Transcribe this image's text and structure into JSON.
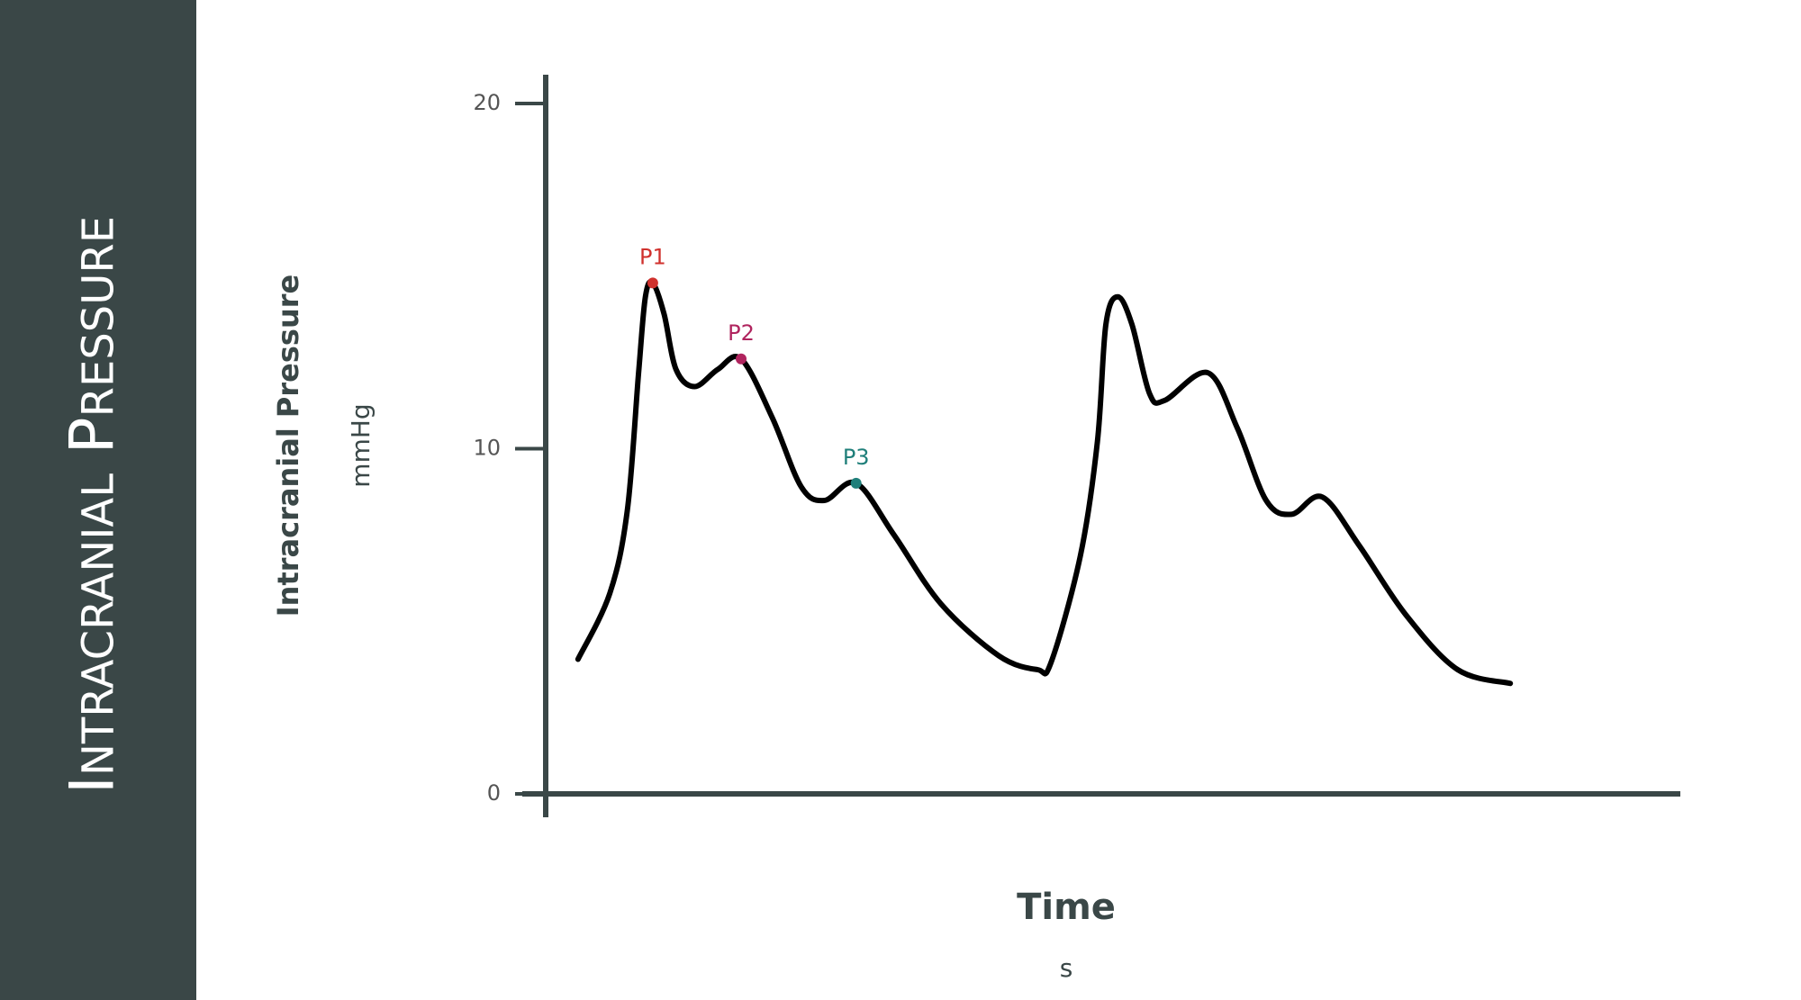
{
  "chart_data": {
    "type": "line",
    "title": "Intracranial Pressure",
    "y_label": "Intracranial Pressure",
    "y_unit": "mmHg",
    "x_label": "Time",
    "x_unit": "s",
    "x": [
      0.057,
      0.113,
      0.144,
      0.164,
      0.176,
      0.189,
      0.209,
      0.23,
      0.263,
      0.304,
      0.345,
      0.4,
      0.451,
      0.492,
      0.548,
      0.615,
      0.698,
      0.8,
      0.868,
      0.892,
      0.944,
      0.974,
      0.989,
      1.01,
      1.035,
      1.066,
      1.093,
      1.169,
      1.221,
      1.272,
      1.317,
      1.371,
      1.436,
      1.518,
      1.61,
      1.703
    ],
    "series": [
      {
        "name": "Intracranial Pressure",
        "color": "#000000",
        "values": [
          3.9,
          5.8,
          8.2,
          12.2,
          14.4,
          14.8,
          13.9,
          12.3,
          11.8,
          12.3,
          12.6,
          10.9,
          8.9,
          8.5,
          9.0,
          7.5,
          5.5,
          4.0,
          3.6,
          3.8,
          6.9,
          10.2,
          13.6,
          14.4,
          13.6,
          11.6,
          11.4,
          12.2,
          10.6,
          8.5,
          8.1,
          8.6,
          7.2,
          5.2,
          3.6,
          3.2
        ]
      }
    ],
    "annotations": [
      {
        "text": "P1",
        "x": 0.189,
        "y": 14.8,
        "color": "#d0312d"
      },
      {
        "text": "P2",
        "x": 0.345,
        "y": 12.6,
        "color": "#b0245e"
      },
      {
        "text": "P3",
        "x": 0.548,
        "y": 9.0,
        "color": "#1f7f7a"
      }
    ],
    "xlim": [
      0,
      2
    ],
    "ylim": [
      0,
      20
    ],
    "yticks": [
      0,
      10,
      20
    ],
    "grid": false
  }
}
